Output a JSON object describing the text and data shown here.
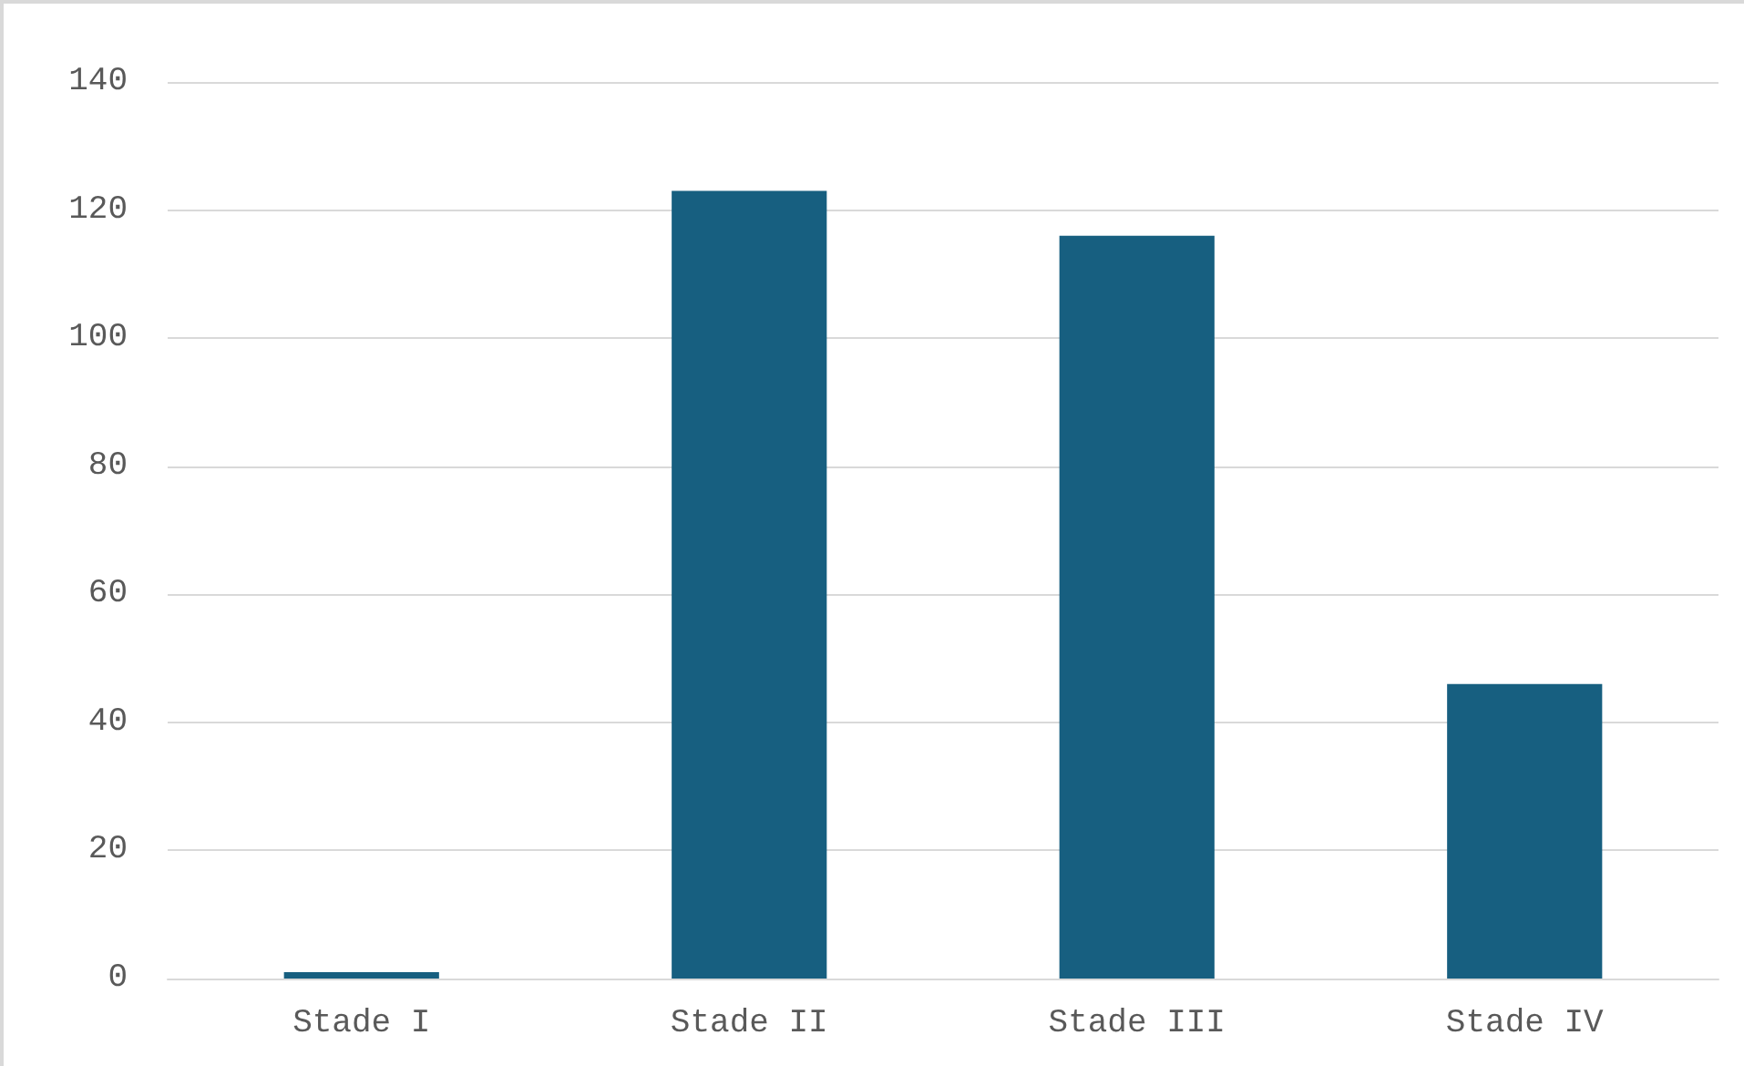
{
  "chart_data": {
    "type": "bar",
    "categories": [
      "Stade I",
      "Stade II",
      "Stade III",
      "Stade IV"
    ],
    "values": [
      1,
      123,
      116,
      46
    ],
    "color": "#175f80",
    "ylim": [
      0,
      140
    ],
    "yticks": [
      0,
      20,
      40,
      60,
      80,
      100,
      120,
      140
    ],
    "grid": "y"
  }
}
